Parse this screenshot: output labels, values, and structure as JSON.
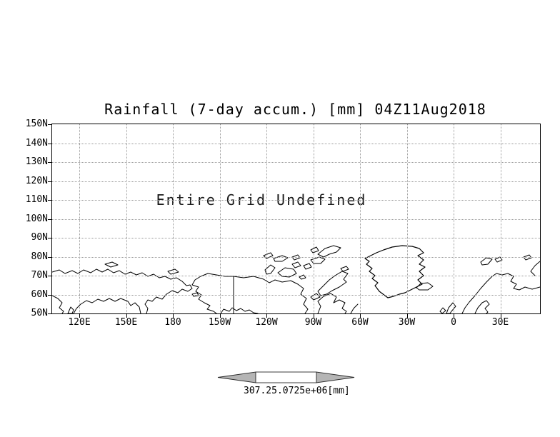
{
  "title": "Rainfall (7-day accum.) [mm] 04Z11Aug2018",
  "plot": {
    "undefined_message": "Entire Grid Undefined",
    "y_ticks": [
      "150N",
      "140N",
      "130N",
      "120N",
      "110N",
      "100N",
      "90N",
      "80N",
      "70N",
      "60N",
      "50N"
    ],
    "x_ticks": [
      "120E",
      "150E",
      "180",
      "150W",
      "120W",
      "90W",
      "60W",
      "30W",
      "0",
      "30E"
    ]
  },
  "colorbar": {
    "low_label": "307.2",
    "high_label": "5.0725e+06",
    "unit": "[mm]"
  },
  "chart_data": {
    "type": "map",
    "title": "Rainfall (7-day accum.) [mm] 04Z11Aug2018",
    "variable": "Rainfall (7-day accum.)",
    "unit": "mm",
    "valid_time": "04Z11Aug2018",
    "status": "Entire Grid Undefined",
    "data_values": null,
    "lat_axis": {
      "ticks": [
        "150N",
        "140N",
        "130N",
        "120N",
        "110N",
        "100N",
        "90N",
        "80N",
        "70N",
        "60N",
        "50N"
      ],
      "range": [
        "50N",
        "150N"
      ],
      "grid": "dotted"
    },
    "lon_axis": {
      "ticks": [
        "120E",
        "150E",
        "180",
        "150W",
        "120W",
        "90W",
        "60W",
        "30W",
        "0",
        "30E"
      ],
      "grid": "dotted"
    },
    "colorbar": {
      "style": "double-arrow",
      "tick_labels": [
        "307.2",
        "5.0725e+06"
      ],
      "unit": "[mm]",
      "arrow_color": "#b5b5b5"
    },
    "basemap": "northern-hemisphere-coastlines (Siberia, Alaska, Canadian Arctic, Greenland, Iceland, Scandinavia)"
  }
}
